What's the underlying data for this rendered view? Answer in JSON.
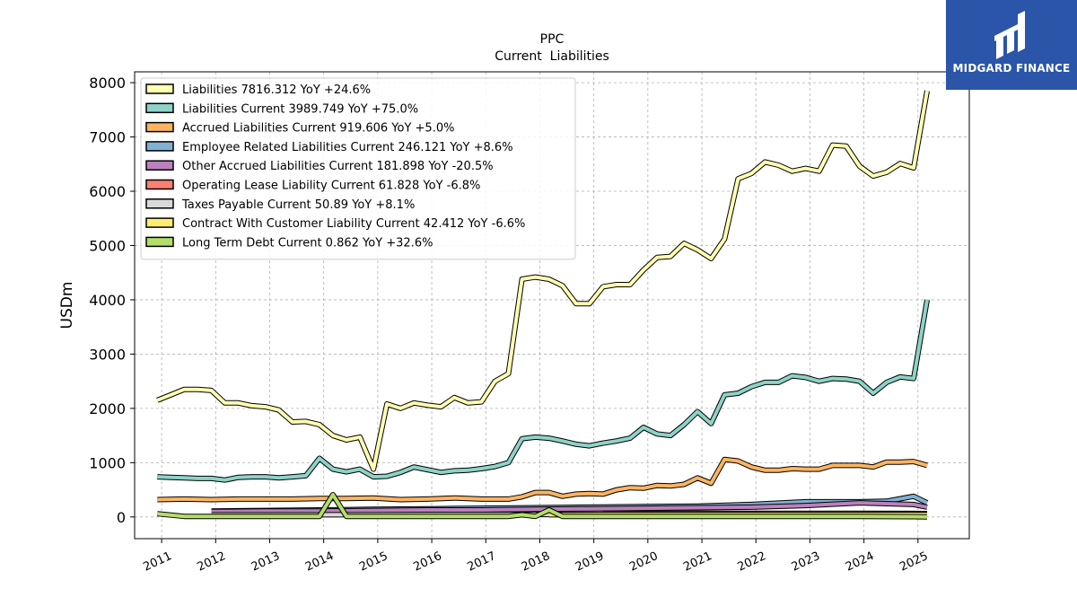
{
  "logo": {
    "text": "MIDGARD FINANCE",
    "bg": "#2a55a8"
  },
  "chart_data": {
    "type": "line",
    "title": "PPC",
    "subtitle": "Current  Liabilities",
    "ylabel": "USDm",
    "xlabel": "",
    "ylim": [
      -400,
      8200
    ],
    "xlim": [
      2010.5,
      2025.95
    ],
    "yticks": [
      0,
      1000,
      2000,
      3000,
      4000,
      5000,
      6000,
      7000,
      8000
    ],
    "xticks": [
      2011,
      2012,
      2013,
      2014,
      2015,
      2016,
      2017,
      2018,
      2019,
      2020,
      2021,
      2022,
      2023,
      2024,
      2025
    ],
    "grid": true,
    "legend_position": "top-left",
    "series": [
      {
        "name": "Liabilities  7816.312 YoY +24.6%",
        "color": "#ffffb3",
        "x": [
          2010.92,
          2011.17,
          2011.42,
          2011.67,
          2011.92,
          2012.17,
          2012.42,
          2012.67,
          2012.92,
          2013.17,
          2013.42,
          2013.67,
          2013.92,
          2014.17,
          2014.42,
          2014.67,
          2014.92,
          2015.17,
          2015.42,
          2015.67,
          2015.92,
          2016.17,
          2016.42,
          2016.67,
          2016.92,
          2017.17,
          2017.42,
          2017.67,
          2017.92,
          2018.17,
          2018.42,
          2018.67,
          2018.92,
          2019.17,
          2019.42,
          2019.67,
          2019.92,
          2020.17,
          2020.42,
          2020.67,
          2020.92,
          2021.17,
          2021.42,
          2021.67,
          2021.92,
          2022.17,
          2022.42,
          2022.67,
          2022.92,
          2023.17,
          2023.42,
          2023.67,
          2023.92,
          2024.17,
          2024.42,
          2024.67,
          2024.92,
          2025.17
        ],
        "y": [
          2150,
          2250,
          2350,
          2350,
          2330,
          2100,
          2100,
          2050,
          2030,
          1970,
          1750,
          1760,
          1700,
          1500,
          1420,
          1470,
          880,
          2080,
          2000,
          2100,
          2060,
          2030,
          2200,
          2100,
          2120,
          2500,
          2640,
          4380,
          4420,
          4380,
          4260,
          3930,
          3930,
          4240,
          4280,
          4280,
          4550,
          4780,
          4800,
          5040,
          4920,
          4760,
          5120,
          6230,
          6330,
          6540,
          6480,
          6370,
          6420,
          6370,
          6850,
          6830,
          6460,
          6280,
          6350,
          6510,
          6430,
          7850
        ]
      },
      {
        "name": "Liabilities Current  3989.749 YoY +75.0%",
        "color": "#8dd3c7",
        "x": [
          2010.92,
          2011.17,
          2011.42,
          2011.67,
          2011.92,
          2012.17,
          2012.42,
          2012.67,
          2012.92,
          2013.17,
          2013.42,
          2013.67,
          2013.92,
          2014.17,
          2014.42,
          2014.67,
          2014.92,
          2015.17,
          2015.42,
          2015.67,
          2015.92,
          2016.17,
          2016.42,
          2016.67,
          2016.92,
          2017.17,
          2017.42,
          2017.67,
          2017.92,
          2018.17,
          2018.42,
          2018.67,
          2018.92,
          2019.17,
          2019.42,
          2019.67,
          2019.92,
          2020.17,
          2020.42,
          2020.67,
          2020.92,
          2021.17,
          2021.42,
          2021.67,
          2021.92,
          2022.17,
          2022.42,
          2022.67,
          2022.92,
          2023.17,
          2023.42,
          2023.67,
          2023.92,
          2024.17,
          2024.42,
          2024.67,
          2024.92,
          2025.17
        ],
        "y": [
          740,
          730,
          720,
          710,
          710,
          680,
          730,
          740,
          740,
          720,
          740,
          760,
          1080,
          880,
          830,
          880,
          740,
          750,
          820,
          920,
          870,
          820,
          850,
          860,
          890,
          930,
          1000,
          1440,
          1470,
          1450,
          1400,
          1340,
          1310,
          1360,
          1400,
          1450,
          1650,
          1530,
          1500,
          1700,
          1940,
          1720,
          2250,
          2280,
          2400,
          2480,
          2480,
          2600,
          2570,
          2500,
          2550,
          2540,
          2500,
          2280,
          2480,
          2580,
          2550,
          4000
        ]
      },
      {
        "name": "Accrued Liabilities Current  919.606 YoY +5.0%",
        "color": "#fdb462",
        "x": [
          2010.92,
          2011.42,
          2011.92,
          2012.42,
          2012.92,
          2013.42,
          2013.92,
          2014.42,
          2014.92,
          2015.42,
          2015.92,
          2016.42,
          2016.92,
          2017.42,
          2017.67,
          2017.92,
          2018.17,
          2018.42,
          2018.67,
          2018.92,
          2019.17,
          2019.42,
          2019.67,
          2019.92,
          2020.17,
          2020.42,
          2020.67,
          2020.92,
          2021.17,
          2021.42,
          2021.67,
          2021.92,
          2022.17,
          2022.42,
          2022.67,
          2022.92,
          2023.17,
          2023.42,
          2023.67,
          2023.92,
          2024.17,
          2024.42,
          2024.67,
          2024.92,
          2025.17
        ],
        "y": [
          320,
          330,
          320,
          330,
          330,
          330,
          340,
          340,
          350,
          320,
          330,
          350,
          330,
          330,
          370,
          450,
          450,
          380,
          420,
          430,
          420,
          500,
          540,
          530,
          580,
          570,
          600,
          720,
          620,
          1060,
          1030,
          920,
          860,
          860,
          890,
          880,
          880,
          950,
          950,
          950,
          920,
          1010,
          1010,
          1020,
          950
        ]
      },
      {
        "name": "Employee Related Liabilities Current  246.121 YoY +8.6%",
        "color": "#80b1d3",
        "x": [
          2011.92,
          2012.92,
          2013.92,
          2014.92,
          2015.92,
          2016.92,
          2017.92,
          2018.92,
          2019.92,
          2020.92,
          2021.92,
          2022.92,
          2023.92,
          2024.42,
          2024.92,
          2025.17
        ],
        "y": [
          110,
          120,
          130,
          140,
          150,
          160,
          170,
          180,
          190,
          200,
          230,
          280,
          280,
          290,
          380,
          260
        ]
      },
      {
        "name": "Other Accrued Liabilities Current  181.898 YoY -20.5%",
        "color": "#bc80bd",
        "x": [
          2011.92,
          2012.92,
          2013.92,
          2014.92,
          2015.92,
          2016.92,
          2017.92,
          2018.92,
          2019.92,
          2020.92,
          2021.92,
          2022.92,
          2023.92,
          2024.92,
          2025.17
        ],
        "y": [
          100,
          110,
          110,
          120,
          130,
          130,
          140,
          150,
          160,
          170,
          180,
          210,
          260,
          230,
          180
        ]
      },
      {
        "name": "Operating Lease Liability Current  61.828 YoY -6.8%",
        "color": "#fb8072",
        "x": [
          2019.17,
          2019.92,
          2020.92,
          2021.92,
          2022.92,
          2023.92,
          2024.92,
          2025.17
        ],
        "y": [
          70,
          70,
          70,
          68,
          66,
          66,
          64,
          62
        ]
      },
      {
        "name": "Taxes Payable Current  50.89 YoY +8.1%",
        "color": "#d9d9d9",
        "x": [
          2011.92,
          2013.92,
          2015.92,
          2017.92,
          2019.92,
          2021.92,
          2023.92,
          2025.17
        ],
        "y": [
          40,
          40,
          45,
          45,
          50,
          48,
          47,
          51
        ]
      },
      {
        "name": "Contract With Customer Liability Current  42.412 YoY -6.6%",
        "color": "#ffed6f",
        "x": [
          2018.17,
          2019.17,
          2020.92,
          2022.92,
          2024.92,
          2025.17
        ],
        "y": [
          40,
          45,
          45,
          45,
          45,
          42
        ]
      },
      {
        "name": "Long Term Debt Current  0.862 YoY +32.6%",
        "color": "#b3de69",
        "x": [
          2010.92,
          2011.42,
          2011.92,
          2012.92,
          2013.42,
          2013.67,
          2013.92,
          2014.17,
          2014.42,
          2014.92,
          2015.92,
          2016.92,
          2017.42,
          2017.67,
          2017.92,
          2018.17,
          2018.42,
          2018.67,
          2018.92,
          2019.42,
          2019.92,
          2020.92,
          2021.92,
          2022.92,
          2023.92,
          2024.92,
          2025.17
        ],
        "y": [
          60,
          10,
          10,
          10,
          10,
          10,
          10,
          410,
          10,
          10,
          10,
          10,
          10,
          40,
          10,
          130,
          10,
          10,
          10,
          10,
          10,
          10,
          10,
          10,
          10,
          5,
          1
        ]
      }
    ]
  }
}
